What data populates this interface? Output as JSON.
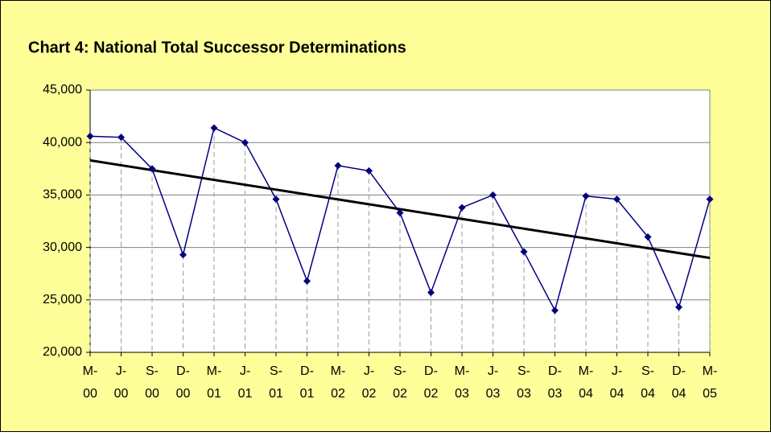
{
  "chart_data": {
    "type": "line",
    "title": "Chart 4: National Total Successor Determinations",
    "categories": [
      [
        "M-",
        "00"
      ],
      [
        "J-",
        "00"
      ],
      [
        "S-",
        "00"
      ],
      [
        "D-",
        "00"
      ],
      [
        "M-",
        "01"
      ],
      [
        "J-",
        "01"
      ],
      [
        "S-",
        "01"
      ],
      [
        "D-",
        "01"
      ],
      [
        "M-",
        "02"
      ],
      [
        "J-",
        "02"
      ],
      [
        "S-",
        "02"
      ],
      [
        "D-",
        "02"
      ],
      [
        "M-",
        "03"
      ],
      [
        "J-",
        "03"
      ],
      [
        "S-",
        "03"
      ],
      [
        "D-",
        "03"
      ],
      [
        "M-",
        "04"
      ],
      [
        "J-",
        "04"
      ],
      [
        "S-",
        "04"
      ],
      [
        "D-",
        "04"
      ],
      [
        "M-",
        "05"
      ]
    ],
    "values": [
      40600,
      40500,
      37500,
      29300,
      41400,
      40000,
      34600,
      26800,
      37800,
      37300,
      33300,
      25700,
      33800,
      35000,
      29600,
      24000,
      34900,
      34600,
      31000,
      24300,
      34600
    ],
    "color": "#000080",
    "trendline": {
      "color": "#000000",
      "values": [
        38300,
        29000
      ]
    },
    "drop_lines": true,
    "ylim": [
      20000,
      45000
    ],
    "yticks": [
      {
        "value": 20000,
        "label": "20,000"
      },
      {
        "value": 25000,
        "label": "25,000"
      },
      {
        "value": 30000,
        "label": "30,000"
      },
      {
        "value": 35000,
        "label": "35,000"
      },
      {
        "value": 40000,
        "label": "40,000"
      },
      {
        "value": 45000,
        "label": "45,000"
      }
    ],
    "grid": true
  }
}
